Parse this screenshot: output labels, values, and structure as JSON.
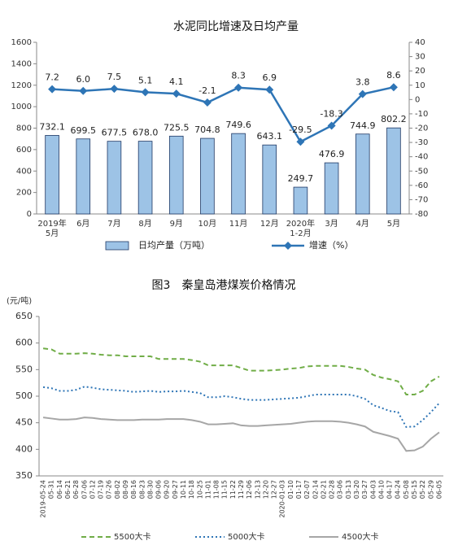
{
  "chart_data": [
    {
      "type": "bar",
      "title": "水泥同比增速及日均产量",
      "categories": [
        "2019年\n5月",
        "6月",
        "7月",
        "8月",
        "9月",
        "10月",
        "11月",
        "12月",
        "2020年\n1-2月",
        "3月",
        "4月",
        "5月"
      ],
      "series": [
        {
          "name": "日均产量（万吨）",
          "type": "bar",
          "color": "#9dc3e6",
          "values": [
            732.1,
            699.5,
            677.5,
            678.0,
            725.5,
            704.8,
            749.6,
            643.1,
            249.7,
            476.9,
            744.9,
            802.2
          ],
          "value_labels": [
            "732.1",
            "699.5",
            "677.5",
            "678.0",
            "725.5",
            "704.8",
            "749.6",
            "643.1",
            "249.7",
            "476.9",
            "744.9",
            "802.2"
          ]
        },
        {
          "name": "增速（%）",
          "type": "line",
          "axis": "y2",
          "color": "#2e75b6",
          "values": [
            7.2,
            6.0,
            7.5,
            5.1,
            4.1,
            -2.1,
            8.3,
            6.9,
            -29.5,
            -18.3,
            3.8,
            8.6
          ],
          "value_labels": [
            "7.2",
            "6.0",
            "7.5",
            "5.1",
            "4.1",
            "-2.1",
            "8.3",
            "6.9",
            "-29.5",
            "-18.3",
            "3.8",
            "8.6"
          ]
        }
      ],
      "ylim": [
        0,
        1600
      ],
      "yticks": [
        0,
        200,
        400,
        600,
        800,
        1000,
        1200,
        1400,
        1600
      ],
      "y2lim": [
        -80,
        40
      ],
      "y2ticks": [
        -80,
        -70,
        -60,
        -50,
        -40,
        -30,
        -20,
        -10,
        0,
        10,
        20,
        30,
        40
      ]
    },
    {
      "type": "line",
      "title": "图3　秦皇岛港煤炭价格情况",
      "y_label": "(元/吨)",
      "categories": [
        "2019-05-24",
        "05-31",
        "06-14",
        "06-21",
        "06-28",
        "07-06",
        "07-12",
        "07-19",
        "07-26",
        "08-02",
        "08-09",
        "08-16",
        "08-23",
        "08-30",
        "09-06",
        "09-20",
        "09-27",
        "10-11",
        "10-18",
        "10-25",
        "11-01",
        "11-08",
        "11-15",
        "11-22",
        "11-29",
        "12-06",
        "12-13",
        "12-20",
        "12-27",
        "2020-01-03",
        "01-10",
        "01-17",
        "02-07",
        "02-14",
        "02-21",
        "02-28",
        "03-06",
        "03-13",
        "03-20",
        "03-27",
        "04-03",
        "04-10",
        "04-17",
        "04-24",
        "05-08",
        "05-15",
        "05-22",
        "05-29",
        "06-05"
      ],
      "series": [
        {
          "name": "5500大卡",
          "color": "#70ad47",
          "dash": "dashed",
          "values": [
            590,
            588,
            580,
            580,
            580,
            581,
            580,
            578,
            577,
            577,
            575,
            575,
            575,
            575,
            570,
            570,
            570,
            570,
            568,
            565,
            558,
            558,
            558,
            558,
            553,
            548,
            548,
            548,
            549,
            550,
            552,
            553,
            556,
            557,
            557,
            557,
            557,
            555,
            552,
            550,
            540,
            535,
            532,
            528,
            503,
            503,
            510,
            528,
            537
          ]
        },
        {
          "name": "5000大卡",
          "color": "#2e75b6",
          "dash": "dotted",
          "values": [
            517,
            515,
            510,
            510,
            512,
            518,
            516,
            513,
            512,
            511,
            510,
            508,
            509,
            510,
            508,
            509,
            509,
            510,
            508,
            506,
            498,
            498,
            500,
            498,
            495,
            493,
            493,
            493,
            494,
            495,
            496,
            497,
            500,
            503,
            503,
            503,
            503,
            503,
            500,
            495,
            483,
            478,
            472,
            470,
            442,
            443,
            455,
            470,
            487
          ]
        },
        {
          "name": "4500大卡",
          "color": "#a6a6a6",
          "dash": "solid",
          "values": [
            460,
            458,
            456,
            456,
            457,
            460,
            459,
            457,
            456,
            455,
            455,
            455,
            456,
            456,
            456,
            457,
            457,
            457,
            455,
            452,
            447,
            447,
            448,
            449,
            445,
            444,
            444,
            445,
            446,
            447,
            448,
            450,
            452,
            453,
            453,
            453,
            452,
            450,
            447,
            443,
            433,
            429,
            425,
            420,
            397,
            398,
            405,
            420,
            432
          ]
        }
      ],
      "ylim": [
        350,
        650
      ],
      "yticks": [
        350,
        400,
        450,
        500,
        550,
        600,
        650
      ]
    }
  ]
}
